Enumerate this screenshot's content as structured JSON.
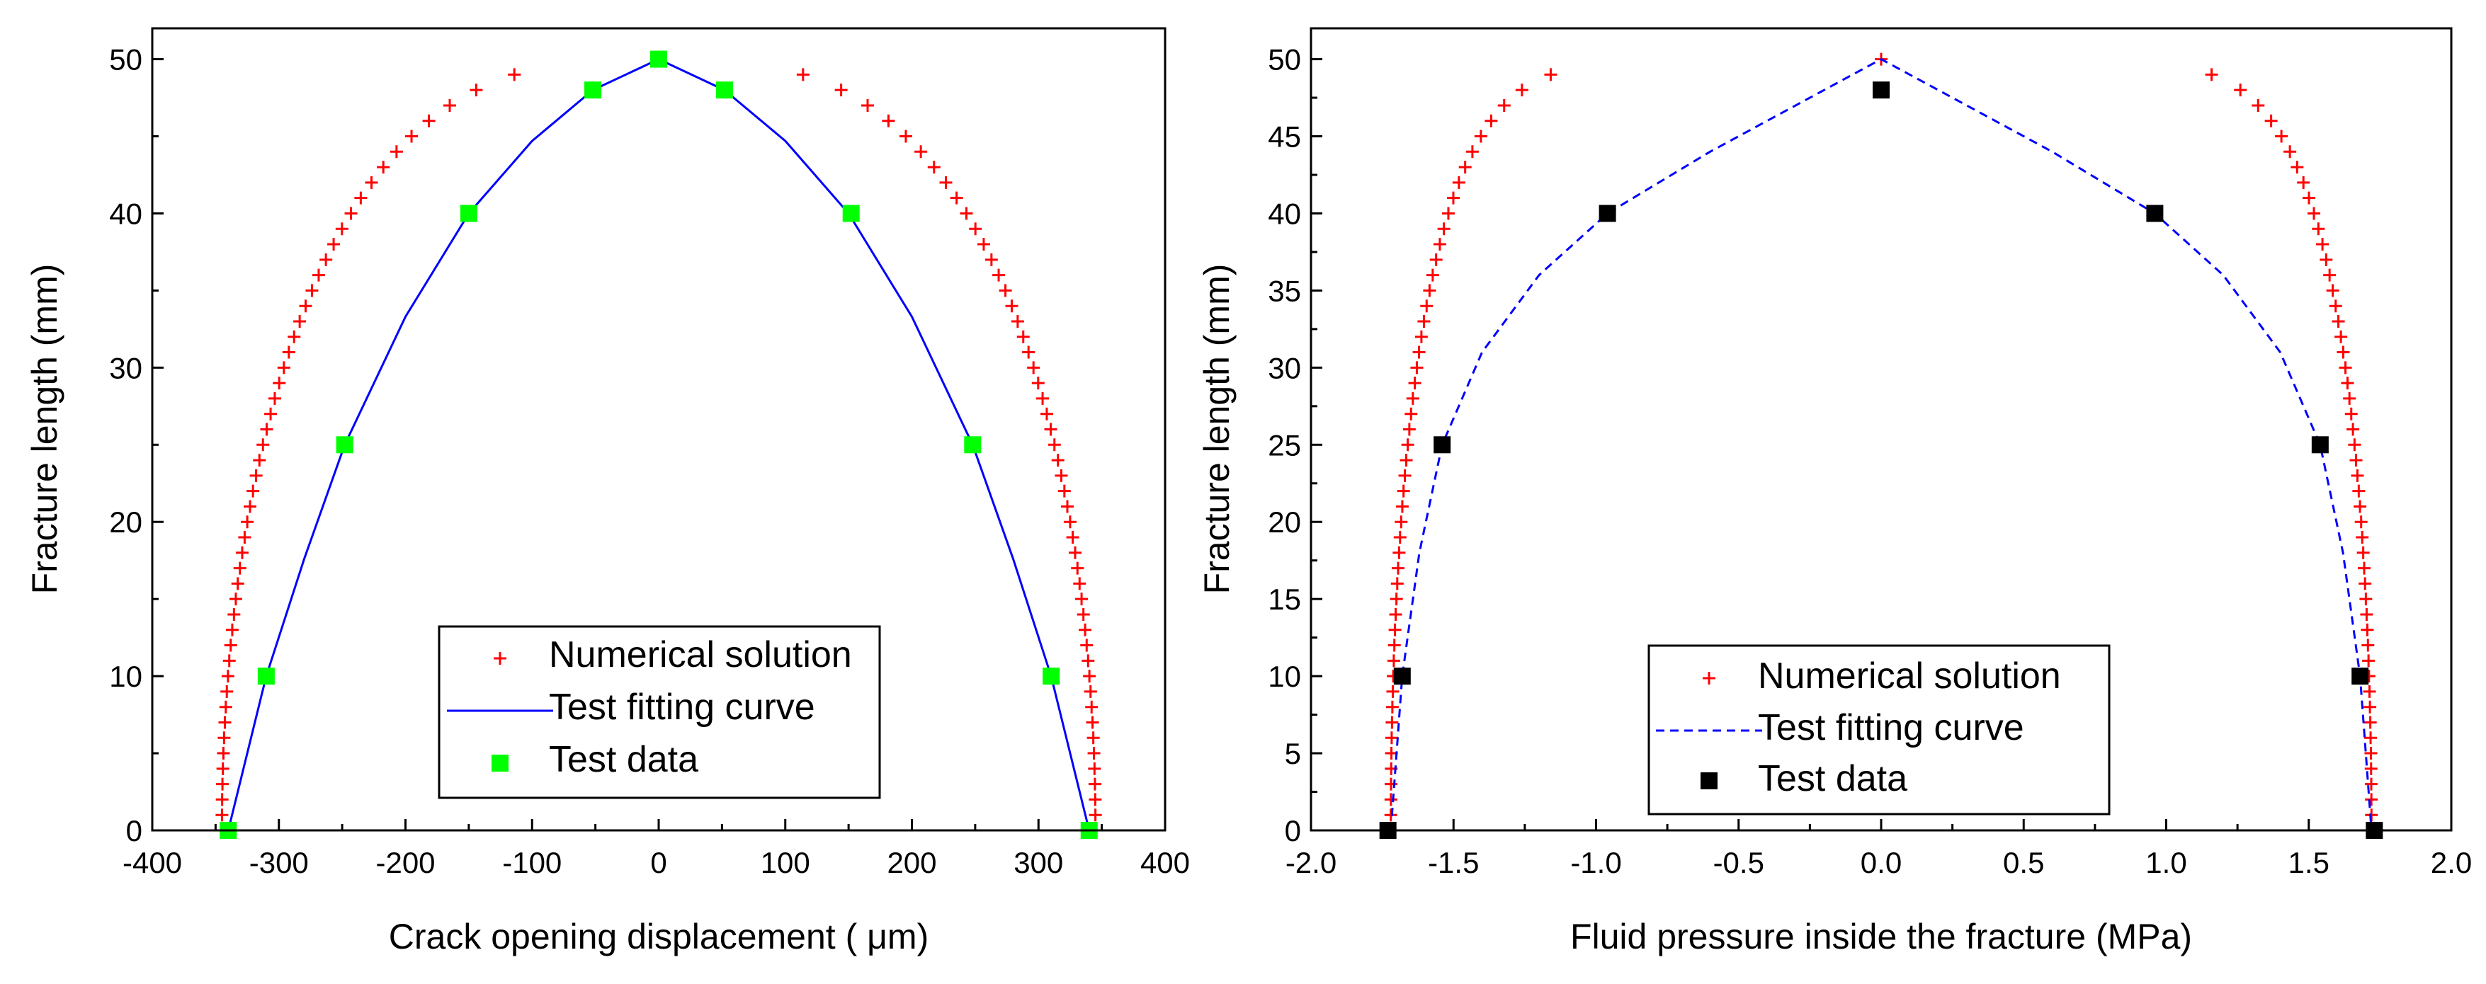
{
  "chart_data": [
    {
      "type": "scatter",
      "id": "left",
      "xlabel": "Crack opening displacement ( μm)",
      "ylabel": "Fracture length (mm)",
      "xlim": [
        -400,
        400
      ],
      "ylim": [
        0,
        52
      ],
      "x_ticks": [
        -400,
        -300,
        -200,
        -100,
        0,
        100,
        200,
        300,
        400
      ],
      "y_ticks": [
        0,
        10,
        20,
        30,
        40,
        50
      ],
      "y_minor_step": 5,
      "x_minor_step": 50,
      "legend_position": "bottom-center",
      "series": [
        {
          "name": "Numerical solution",
          "kind": "plus",
          "color": "#ff0000",
          "model": {
            "half_width": 345,
            "exponent": 1.75,
            "count": 50
          }
        },
        {
          "name": "Test fitting curve",
          "kind": "line",
          "color": "#0000ff",
          "dash": false,
          "x": [
            -340,
            -310,
            -280,
            -248,
            -200,
            -150,
            -100,
            -52,
            0,
            52,
            100,
            150,
            200,
            248,
            280,
            310,
            340
          ],
          "y": [
            0,
            10,
            17.6,
            25,
            33.3,
            40,
            44.7,
            48,
            50,
            48,
            44.7,
            40,
            33.3,
            25,
            17.6,
            10,
            0
          ]
        },
        {
          "name": "Test data",
          "kind": "square",
          "color": "#00ff00",
          "x": [
            -340,
            -310,
            -248,
            -150,
            -52,
            0,
            52,
            152,
            248,
            310,
            340
          ],
          "y": [
            0,
            10,
            25,
            40,
            48,
            50,
            48,
            40,
            25,
            10,
            0
          ]
        }
      ]
    },
    {
      "type": "scatter",
      "id": "right",
      "xlabel": "Fluid pressure inside the fracture (MPa)",
      "ylabel": "Fracture length (mm)",
      "xlim": [
        -2.0,
        2.0
      ],
      "ylim": [
        0,
        52
      ],
      "x_ticks": [
        -2.0,
        -1.5,
        -1.0,
        -0.5,
        0.0,
        0.5,
        1.0,
        1.5,
        2.0
      ],
      "x_tick_labels": [
        "-2.0",
        "-1.5",
        "-1.0",
        "-0.5",
        "0.0",
        "0.5",
        "1.0",
        "1.5",
        "2.0"
      ],
      "y_ticks": [
        0,
        5,
        10,
        15,
        20,
        25,
        30,
        35,
        40,
        45,
        50
      ],
      "y_minor_step": 2.5,
      "x_minor_step": 0.25,
      "legend_position": "bottom-center",
      "series": [
        {
          "name": "Numerical solution",
          "kind": "plus",
          "color": "#ff0000",
          "model": {
            "half_width": 1.72,
            "exponent": 4.5,
            "count": 50
          }
        },
        {
          "name": "Test fitting curve",
          "kind": "line",
          "color": "#0000ff",
          "dash": true,
          "x": [
            -1.72,
            -1.7,
            -1.68,
            -1.62,
            -1.54,
            -1.4,
            -1.2,
            -0.96,
            -0.6,
            -0.3,
            0,
            0.3,
            0.6,
            0.96,
            1.2,
            1.4,
            1.54,
            1.62,
            1.68,
            1.7,
            1.72
          ],
          "y": [
            0,
            5,
            10,
            18,
            25,
            31,
            36,
            40,
            44,
            47,
            50,
            47,
            44,
            40,
            36,
            31,
            25,
            18,
            10,
            5,
            0
          ]
        },
        {
          "name": "Test data",
          "kind": "square",
          "color": "#000000",
          "x": [
            -1.73,
            -1.68,
            -1.54,
            -0.96,
            0,
            0.96,
            1.54,
            1.68,
            1.73
          ],
          "y": [
            0,
            10,
            25,
            40,
            48,
            40,
            25,
            10,
            0
          ]
        }
      ]
    }
  ]
}
